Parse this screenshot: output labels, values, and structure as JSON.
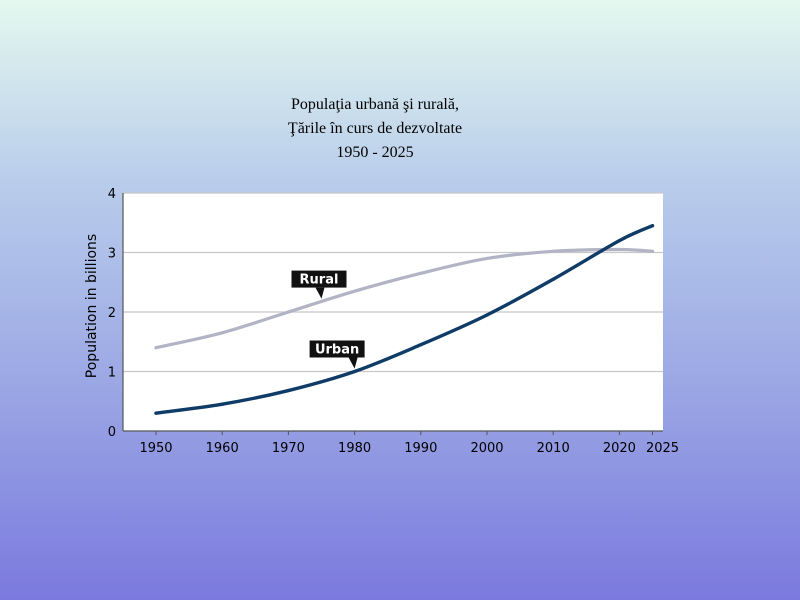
{
  "slide": {
    "title_lines": [
      "Populaţia urbană şi rurală,",
      "Ţările în curs de dezvoltate",
      "1950 - 2025"
    ]
  },
  "chart_data": {
    "type": "line",
    "ylabel": "Population in billions",
    "xlabel": "",
    "x": [
      1950,
      1960,
      1970,
      1980,
      1990,
      2000,
      2010,
      2020,
      2025
    ],
    "x_tick_labels": [
      "1950",
      "1960",
      "1970",
      "1980",
      "1990",
      "2000",
      "2010",
      "2020",
      "2025"
    ],
    "ylim": [
      0,
      4
    ],
    "y_ticks": [
      0,
      1,
      2,
      3,
      4
    ],
    "grid": "horizontal",
    "series": [
      {
        "name": "Rural",
        "color": "#b3b3c6",
        "values": [
          1.4,
          1.65,
          2.0,
          2.35,
          2.65,
          2.9,
          3.02,
          3.05,
          3.02
        ]
      },
      {
        "name": "Urban",
        "color": "#0f3b67",
        "values": [
          0.3,
          0.45,
          0.68,
          1.0,
          1.45,
          1.95,
          2.55,
          3.2,
          3.45
        ]
      }
    ],
    "callouts": [
      {
        "text": "Rural",
        "series": "Rural",
        "at_x": 1975
      },
      {
        "text": "Urban",
        "series": "Urban",
        "at_x": 1980
      }
    ]
  }
}
